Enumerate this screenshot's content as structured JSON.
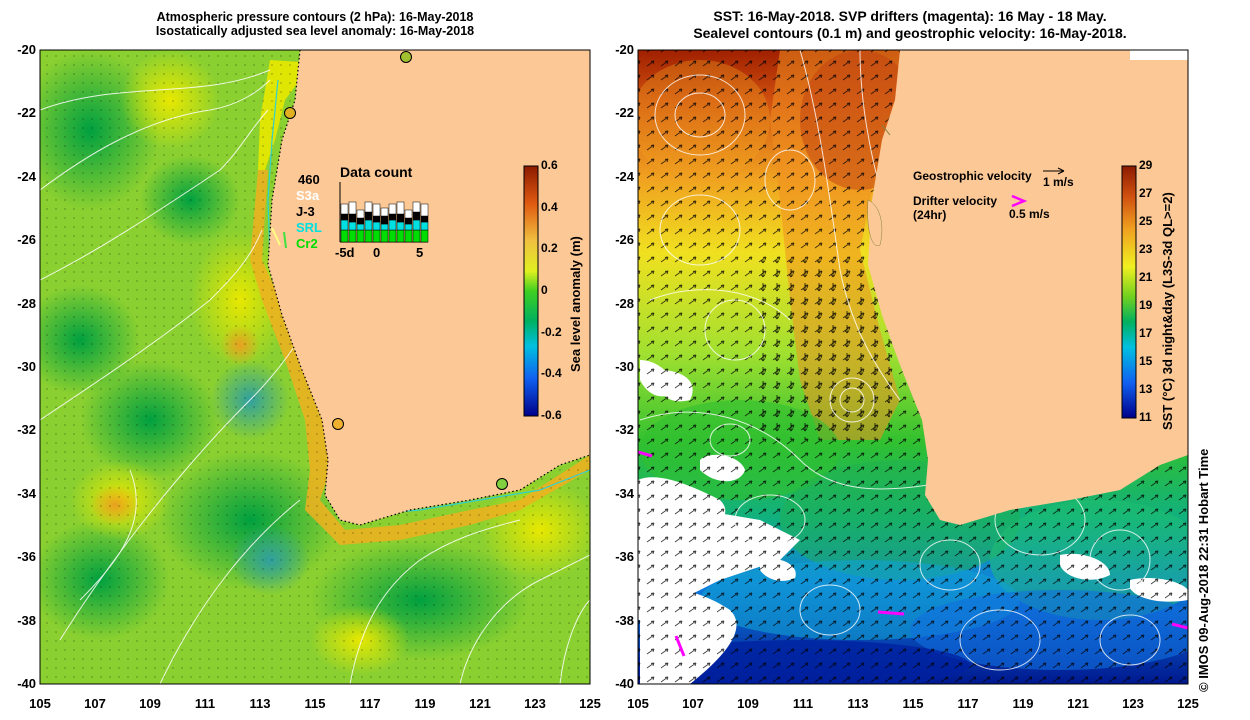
{
  "left_panel": {
    "title_line1": "Atmospheric pressure contours (2 hPa): 16-May-2018",
    "title_line2": "Isostatically adjusted sea level anomaly: 16-May-2018",
    "y_ticks": [
      "-20",
      "-22",
      "-24",
      "-26",
      "-28",
      "-30",
      "-32",
      "-34",
      "-36",
      "-38",
      "-40"
    ],
    "x_ticks": [
      "105",
      "107",
      "109",
      "111",
      "113",
      "115",
      "117",
      "119",
      "121",
      "123",
      "125"
    ],
    "colorbar": {
      "label": "Sea level anomaly (m)",
      "ticks": [
        "0.6",
        "0.4",
        "0.2",
        "0",
        "-0.2",
        "-0.4",
        "-0.6"
      ],
      "range": [
        -0.6,
        0.6
      ]
    },
    "data_count": {
      "title": "Data count",
      "missions": [
        {
          "name": "460",
          "color": "#000000"
        },
        {
          "name": "S3a",
          "color": "#ffffff"
        },
        {
          "name": "J-3",
          "color": "#000000"
        },
        {
          "name": "SRL",
          "color": "#00e0e0"
        },
        {
          "name": "Cr2",
          "color": "#00dd00"
        }
      ],
      "x_ticks": [
        "-5d",
        "0",
        "5"
      ]
    }
  },
  "right_panel": {
    "title_line1": "SST: 16-May-2018. SVP drifters (magenta): 16 May - 18 May.",
    "title_line2": "Sealevel contours (0.1 m) and geostrophic velocity: 16-May-2018.",
    "y_ticks": [
      "-20",
      "-22",
      "-24",
      "-26",
      "-28",
      "-30",
      "-32",
      "-34",
      "-36",
      "-38",
      "-40"
    ],
    "x_ticks": [
      "105",
      "107",
      "109",
      "111",
      "113",
      "115",
      "117",
      "119",
      "121",
      "123",
      "125"
    ],
    "legend": {
      "geostrophic_label": "Geostrophic velocity",
      "geostrophic_scale": "1 m/s",
      "drifter_label_line1": "Drifter velocity",
      "drifter_label_line2": "(24hr)",
      "drifter_scale": "0.5 m/s"
    },
    "colorbar": {
      "label": "SST (°C) 3d night&day (L3S-3d QL>=2)",
      "ticks": [
        "29",
        "27",
        "25",
        "23",
        "21",
        "19",
        "17",
        "15",
        "13",
        "11"
      ],
      "range": [
        11,
        29
      ]
    }
  },
  "credit": "© IMOS 09-Aug-2018 22:31 Hobart Time",
  "colors": {
    "land": "#fcc896",
    "magenta": "#ff00ff",
    "contour": "#e8e8e8"
  }
}
